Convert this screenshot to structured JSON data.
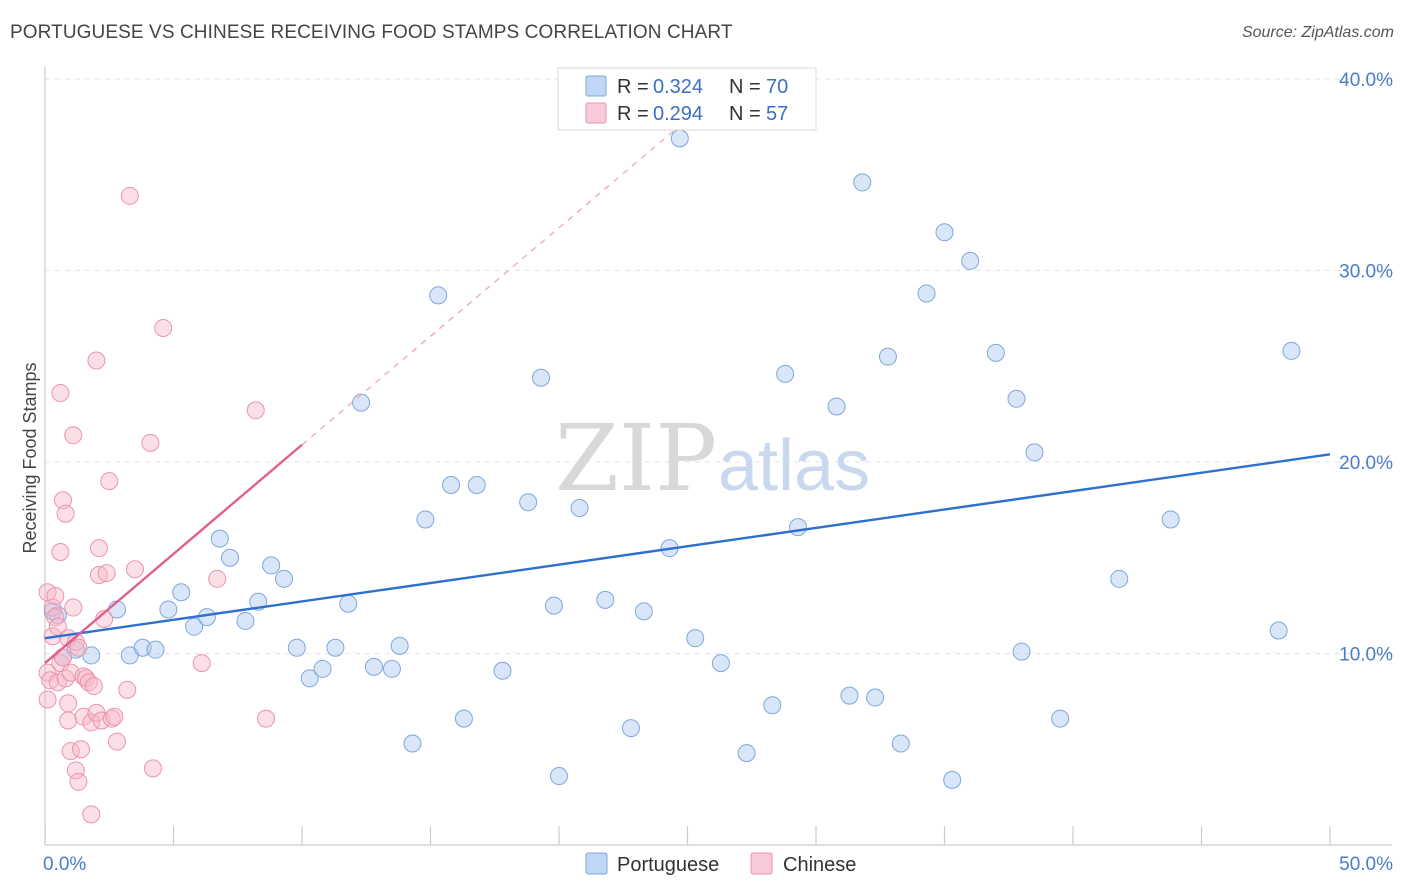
{
  "title": "PORTUGUESE VS CHINESE RECEIVING FOOD STAMPS CORRELATION CHART",
  "source": "Source: ZipAtlas.com",
  "watermark": {
    "zip": "ZIP",
    "atlas": "atlas"
  },
  "legend": {
    "rows": [
      {
        "r_label": "R = ",
        "r_value": "0.324",
        "n_label": "N = ",
        "n_value": "70",
        "color": "#a9c8f0"
      },
      {
        "r_label": "R = ",
        "r_value": "0.294",
        "n_label": "N = ",
        "n_value": "57",
        "color": "#f6b8ca"
      }
    ]
  },
  "bottom_legend": [
    "Portuguese",
    "Chinese"
  ],
  "chart_data": {
    "type": "scatter",
    "title": "PORTUGUESE VS CHINESE RECEIVING FOOD STAMPS CORRELATION CHART",
    "xlabel": "",
    "ylabel": "Receiving Food Stamps",
    "xlim": [
      0,
      50
    ],
    "ylim": [
      0,
      40
    ],
    "x_tick_labels": [
      "0.0%",
      "50.0%"
    ],
    "y_ticks": [
      10,
      20,
      30,
      40
    ],
    "y_tick_labels": [
      "10.0%",
      "20.0%",
      "30.0%",
      "40.0%"
    ],
    "grid": true,
    "legend_position": "top-center",
    "colors": {
      "portuguese": "#a9c8f0",
      "portuguese_line": "#2f6fd0",
      "chinese": "#f6b8ca",
      "chinese_line": "#e0608a"
    },
    "series": [
      {
        "name": "Portuguese",
        "r": 0.324,
        "n": 70,
        "trend": {
          "x": [
            0,
            50
          ],
          "y": [
            10.8,
            20.4
          ]
        },
        "points": [
          [
            0.3,
            12.2
          ],
          [
            0.7,
            9.8
          ],
          [
            1.2,
            10.2
          ],
          [
            1.8,
            9.9
          ],
          [
            2.8,
            12.3
          ],
          [
            3.3,
            9.9
          ],
          [
            3.8,
            10.3
          ],
          [
            4.3,
            10.2
          ],
          [
            4.8,
            12.3
          ],
          [
            5.3,
            13.2
          ],
          [
            5.8,
            11.4
          ],
          [
            6.3,
            11.9
          ],
          [
            6.8,
            16.0
          ],
          [
            7.2,
            15.0
          ],
          [
            7.8,
            11.7
          ],
          [
            8.3,
            12.7
          ],
          [
            8.8,
            14.6
          ],
          [
            9.3,
            13.9
          ],
          [
            9.8,
            10.3
          ],
          [
            10.3,
            8.7
          ],
          [
            10.8,
            9.2
          ],
          [
            11.3,
            10.3
          ],
          [
            11.8,
            12.6
          ],
          [
            12.3,
            23.1
          ],
          [
            12.8,
            9.3
          ],
          [
            13.5,
            9.2
          ],
          [
            13.8,
            10.4
          ],
          [
            14.3,
            5.3
          ],
          [
            14.8,
            17.0
          ],
          [
            15.3,
            28.7
          ],
          [
            15.8,
            18.8
          ],
          [
            16.3,
            6.6
          ],
          [
            16.8,
            18.8
          ],
          [
            17.8,
            9.1
          ],
          [
            18.8,
            17.9
          ],
          [
            19.3,
            24.4
          ],
          [
            19.8,
            12.5
          ],
          [
            20.0,
            3.6
          ],
          [
            20.8,
            17.6
          ],
          [
            21.8,
            12.8
          ],
          [
            22.8,
            6.1
          ],
          [
            23.3,
            12.2
          ],
          [
            24.3,
            15.5
          ],
          [
            24.7,
            36.9
          ],
          [
            25.3,
            10.8
          ],
          [
            26.3,
            9.5
          ],
          [
            27.3,
            4.8
          ],
          [
            28.3,
            7.3
          ],
          [
            28.8,
            24.6
          ],
          [
            29.3,
            16.6
          ],
          [
            30.8,
            22.9
          ],
          [
            31.3,
            7.8
          ],
          [
            31.8,
            34.6
          ],
          [
            32.3,
            7.7
          ],
          [
            32.8,
            25.5
          ],
          [
            33.3,
            5.3
          ],
          [
            34.3,
            28.8
          ],
          [
            35.0,
            32.0
          ],
          [
            35.3,
            3.4
          ],
          [
            36.0,
            30.5
          ],
          [
            37.0,
            25.7
          ],
          [
            37.8,
            23.3
          ],
          [
            38.0,
            10.1
          ],
          [
            38.5,
            20.5
          ],
          [
            39.5,
            6.6
          ],
          [
            41.8,
            13.9
          ],
          [
            43.8,
            17.0
          ],
          [
            48.0,
            11.2
          ],
          [
            48.5,
            25.8
          ],
          [
            0.5,
            12.0
          ]
        ]
      },
      {
        "name": "Chinese",
        "r": 0.294,
        "n": 57,
        "trend": {
          "x": [
            0,
            10
          ],
          "y": [
            9.5,
            20.9
          ]
        },
        "trend_extended": {
          "x": [
            10,
            25
          ],
          "y": [
            20.9,
            37.9
          ]
        },
        "points": [
          [
            0.1,
            13.2
          ],
          [
            0.1,
            9.0
          ],
          [
            0.1,
            7.6
          ],
          [
            0.2,
            8.6
          ],
          [
            0.3,
            12.4
          ],
          [
            0.3,
            10.9
          ],
          [
            0.4,
            13.0
          ],
          [
            0.4,
            11.9
          ],
          [
            0.5,
            8.5
          ],
          [
            0.5,
            11.4
          ],
          [
            0.6,
            23.6
          ],
          [
            0.6,
            15.3
          ],
          [
            0.6,
            9.5
          ],
          [
            0.7,
            18.0
          ],
          [
            0.7,
            9.8
          ],
          [
            0.8,
            17.3
          ],
          [
            0.8,
            8.7
          ],
          [
            0.9,
            6.5
          ],
          [
            0.9,
            7.4
          ],
          [
            0.9,
            10.8
          ],
          [
            1.0,
            4.9
          ],
          [
            1.0,
            9.0
          ],
          [
            1.1,
            21.4
          ],
          [
            1.1,
            12.4
          ],
          [
            1.2,
            3.9
          ],
          [
            1.2,
            10.6
          ],
          [
            1.3,
            3.3
          ],
          [
            1.3,
            10.3
          ],
          [
            1.4,
            5.0
          ],
          [
            1.5,
            8.8
          ],
          [
            1.5,
            6.7
          ],
          [
            1.6,
            8.7
          ],
          [
            1.7,
            8.5
          ],
          [
            1.8,
            6.4
          ],
          [
            1.8,
            1.6
          ],
          [
            1.9,
            8.3
          ],
          [
            2.0,
            25.3
          ],
          [
            2.0,
            6.9
          ],
          [
            2.1,
            15.5
          ],
          [
            2.1,
            14.1
          ],
          [
            2.2,
            6.5
          ],
          [
            2.3,
            11.8
          ],
          [
            2.4,
            14.2
          ],
          [
            2.5,
            19.0
          ],
          [
            2.6,
            6.6
          ],
          [
            2.7,
            6.7
          ],
          [
            2.8,
            5.4
          ],
          [
            3.2,
            8.1
          ],
          [
            3.3,
            33.9
          ],
          [
            3.5,
            14.4
          ],
          [
            4.1,
            21.0
          ],
          [
            4.2,
            4.0
          ],
          [
            4.6,
            27.0
          ],
          [
            6.1,
            9.5
          ],
          [
            6.7,
            13.9
          ],
          [
            8.2,
            22.7
          ],
          [
            8.6,
            6.6
          ]
        ]
      }
    ]
  }
}
